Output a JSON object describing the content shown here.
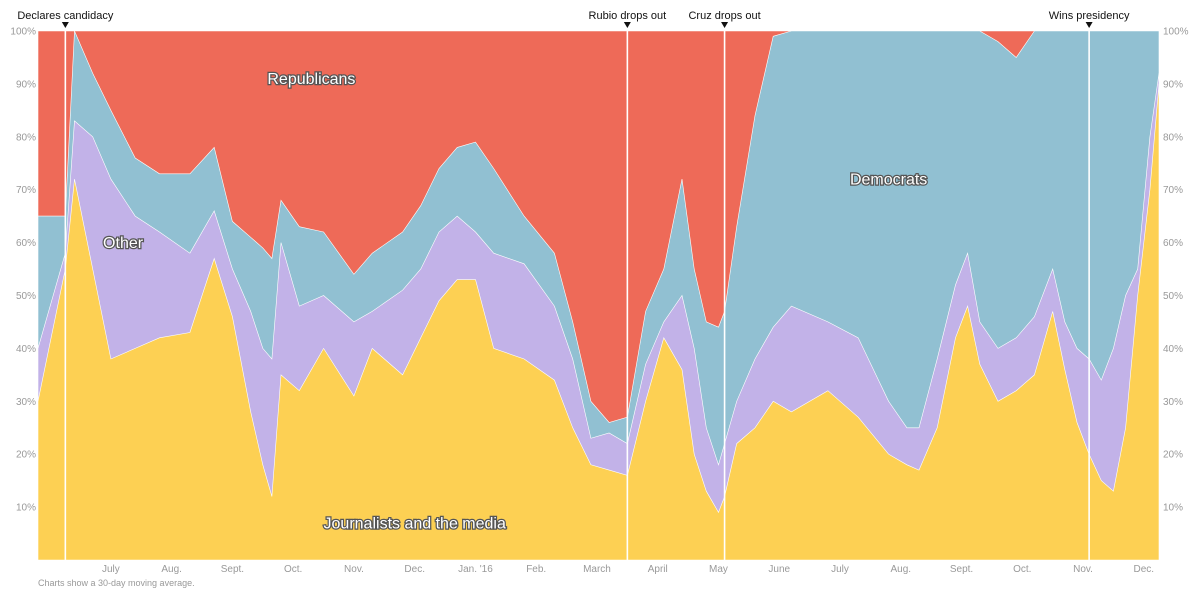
{
  "chart_data": {
    "type": "area",
    "stacked": true,
    "normalized_percent": true,
    "note": "Charts show a 30-day moving average.",
    "yticks": [
      "10%",
      "20%",
      "30%",
      "40%",
      "50%",
      "60%",
      "70%",
      "80%",
      "90%",
      "100%"
    ],
    "ylim": [
      0,
      100
    ],
    "xlim": [
      0,
      18.45
    ],
    "x_tick_labels": [
      {
        "label": "July",
        "x": 1.2
      },
      {
        "label": "Aug.",
        "x": 2.2
      },
      {
        "label": "Sept.",
        "x": 3.2
      },
      {
        "label": "Oct.",
        "x": 4.2
      },
      {
        "label": "Nov.",
        "x": 5.2
      },
      {
        "label": "Dec.",
        "x": 6.2
      },
      {
        "label": "Jan. '16",
        "x": 7.2
      },
      {
        "label": "Feb.",
        "x": 8.2
      },
      {
        "label": "March",
        "x": 9.2
      },
      {
        "label": "April",
        "x": 10.2
      },
      {
        "label": "May",
        "x": 11.2
      },
      {
        "label": "June",
        "x": 12.2
      },
      {
        "label": "July",
        "x": 13.2
      },
      {
        "label": "Aug.",
        "x": 14.2
      },
      {
        "label": "Sept.",
        "x": 15.2
      },
      {
        "label": "Oct.",
        "x": 16.2
      },
      {
        "label": "Nov.",
        "x": 17.2
      },
      {
        "label": "Dec.",
        "x": 18.2
      }
    ],
    "events": [
      {
        "label": "Declares candidacy",
        "x": 0.45
      },
      {
        "label": "Rubio drops out",
        "x": 9.7
      },
      {
        "label": "Cruz drops out",
        "x": 11.3
      },
      {
        "label": "Wins presidency",
        "x": 17.3
      }
    ],
    "x": [
      0.0,
      0.45,
      0.6,
      0.9,
      1.2,
      1.6,
      2.0,
      2.5,
      2.9,
      3.2,
      3.5,
      3.7,
      3.85,
      4.0,
      4.3,
      4.7,
      5.2,
      5.5,
      6.0,
      6.3,
      6.6,
      6.9,
      7.2,
      7.5,
      8.0,
      8.5,
      8.8,
      9.1,
      9.4,
      9.7,
      10.0,
      10.3,
      10.6,
      10.8,
      11.0,
      11.2,
      11.3,
      11.5,
      11.8,
      12.1,
      12.4,
      13.0,
      13.5,
      14.0,
      14.3,
      14.5,
      14.8,
      15.1,
      15.3,
      15.5,
      15.8,
      16.1,
      16.4,
      16.7,
      16.9,
      17.1,
      17.3,
      17.5,
      17.7,
      17.9,
      18.1,
      18.3,
      18.45
    ],
    "series": [
      {
        "name": "Journalists and the media",
        "color": "#FDD053",
        "values": [
          30,
          55,
          72,
          55,
          38,
          40,
          42,
          43,
          57,
          46,
          28,
          18,
          12,
          35,
          32,
          40,
          31,
          40,
          35,
          42,
          49,
          53,
          53,
          40,
          38,
          34,
          25,
          18,
          17,
          16,
          30,
          42,
          36,
          20,
          13,
          9,
          12,
          22,
          25,
          30,
          28,
          32,
          27,
          20,
          18,
          17,
          25,
          42,
          48,
          37,
          30,
          32,
          35,
          47,
          36,
          26,
          20,
          15,
          13,
          25,
          50,
          70,
          90
        ]
      },
      {
        "name": "Other",
        "color": "#C2B2E8",
        "values": [
          40,
          58,
          83,
          80,
          72,
          65,
          62,
          58,
          66,
          55,
          47,
          40,
          38,
          60,
          48,
          50,
          45,
          47,
          51,
          55,
          62,
          65,
          62,
          58,
          56,
          48,
          38,
          23,
          24,
          22,
          37,
          45,
          50,
          40,
          25,
          18,
          22,
          30,
          38,
          44,
          48,
          45,
          42,
          30,
          25,
          25,
          38,
          52,
          58,
          45,
          40,
          42,
          46,
          55,
          45,
          40,
          38,
          34,
          40,
          50,
          55,
          80,
          92
        ]
      },
      {
        "name": "Democrats",
        "color": "#91C0D2",
        "values": [
          65,
          65,
          100,
          92,
          85,
          76,
          73,
          73,
          78,
          64,
          61,
          59,
          57,
          68,
          63,
          62,
          54,
          58,
          62,
          67,
          74,
          78,
          79,
          74,
          65,
          58,
          45,
          30,
          26,
          27,
          47,
          55,
          72,
          55,
          45,
          44,
          47,
          63,
          84,
          99,
          100,
          100,
          100,
          100,
          100,
          100,
          100,
          100,
          100,
          100,
          98,
          95,
          100,
          100,
          100,
          100,
          100,
          100,
          100,
          100,
          100,
          100,
          100
        ]
      },
      {
        "name": "Republicans",
        "color": "#EE6A58",
        "values": [
          100,
          100,
          100,
          100,
          100,
          100,
          100,
          100,
          100,
          100,
          100,
          100,
          100,
          100,
          100,
          100,
          100,
          100,
          100,
          100,
          100,
          100,
          100,
          100,
          100,
          100,
          100,
          100,
          100,
          100,
          100,
          100,
          100,
          100,
          100,
          100,
          100,
          100,
          100,
          100,
          100,
          100,
          100,
          100,
          100,
          100,
          100,
          100,
          100,
          100,
          100,
          100,
          100,
          100,
          100,
          100,
          100,
          100,
          100,
          100,
          100,
          100,
          100
        ]
      }
    ],
    "area_labels": [
      {
        "text": "Republicans",
        "x": 4.5,
        "y": 90
      },
      {
        "text": "Other",
        "x": 1.4,
        "y": 59
      },
      {
        "text": "Democrats",
        "x": 14.0,
        "y": 71
      },
      {
        "text": "Journalists and the media",
        "x": 6.2,
        "y": 6
      }
    ]
  }
}
